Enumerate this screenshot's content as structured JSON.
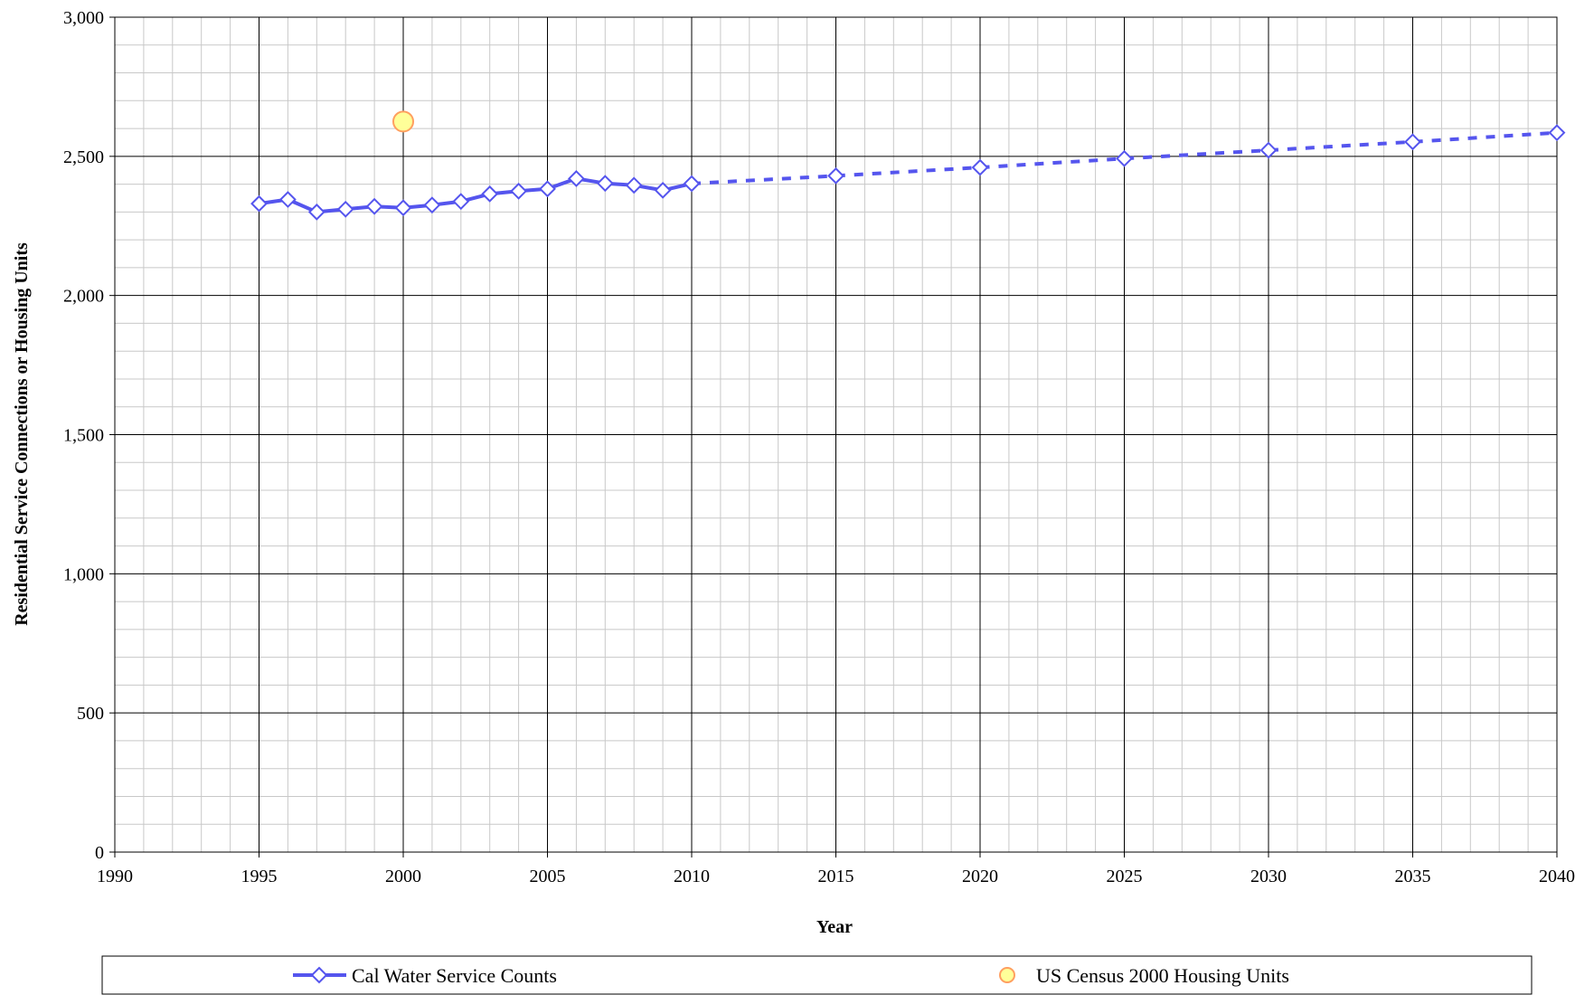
{
  "chart_data": {
    "type": "line",
    "xlabel": "Year",
    "ylabel": "Residential Service Connections or Housing Units",
    "xlim": [
      1990,
      2040
    ],
    "ylim": [
      0,
      3000
    ],
    "x_ticks": [
      "1990",
      "1995",
      "2000",
      "2005",
      "2010",
      "2015",
      "2020",
      "2025",
      "2030",
      "2035",
      "2040"
    ],
    "y_ticks": [
      "0",
      "500",
      "1,000",
      "1,500",
      "2,000",
      "2,500",
      "3,000"
    ],
    "x_tick_values": [
      1990,
      1995,
      2000,
      2005,
      2010,
      2015,
      2020,
      2025,
      2030,
      2035,
      2040
    ],
    "y_tick_values": [
      0,
      500,
      1000,
      1500,
      2000,
      2500,
      3000
    ],
    "grid": true,
    "legend_position": "bottom",
    "series": [
      {
        "name": "Cal Water Service Counts",
        "color": "#5555ee",
        "marker": "diamond",
        "historical": {
          "x": [
            1995,
            1996,
            1997,
            1998,
            1999,
            2000,
            2001,
            2002,
            2003,
            2004,
            2005,
            2006,
            2007,
            2008,
            2009,
            2010
          ],
          "y": [
            2330,
            2345,
            2300,
            2310,
            2320,
            2315,
            2325,
            2338,
            2365,
            2375,
            2383,
            2420,
            2403,
            2396,
            2378,
            2402
          ]
        },
        "projected": {
          "x": [
            2010,
            2015,
            2020,
            2025,
            2030,
            2035,
            2040
          ],
          "y": [
            2402,
            2430,
            2460,
            2492,
            2522,
            2552,
            2585
          ]
        }
      },
      {
        "name": "US Census 2000 Housing Units",
        "color": "#ff9f5f",
        "fill": "#ffff99",
        "marker": "circle",
        "x": [
          2000
        ],
        "y": [
          2625
        ]
      }
    ]
  }
}
